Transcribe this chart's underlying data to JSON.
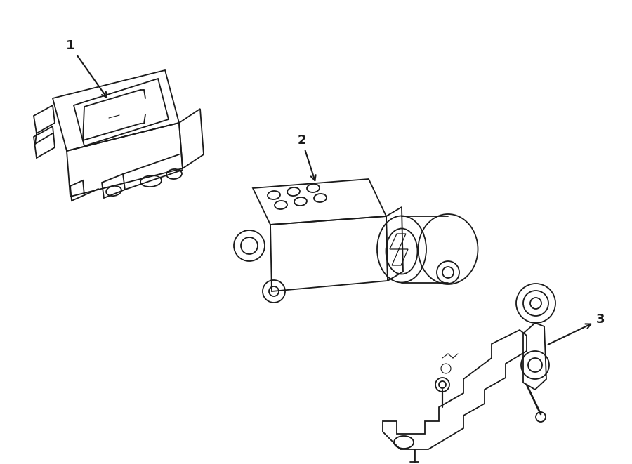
{
  "bg_color": "#ffffff",
  "line_color": "#1a1a1a",
  "line_width": 1.3,
  "label1": "1",
  "label2": "2",
  "label3": "3"
}
